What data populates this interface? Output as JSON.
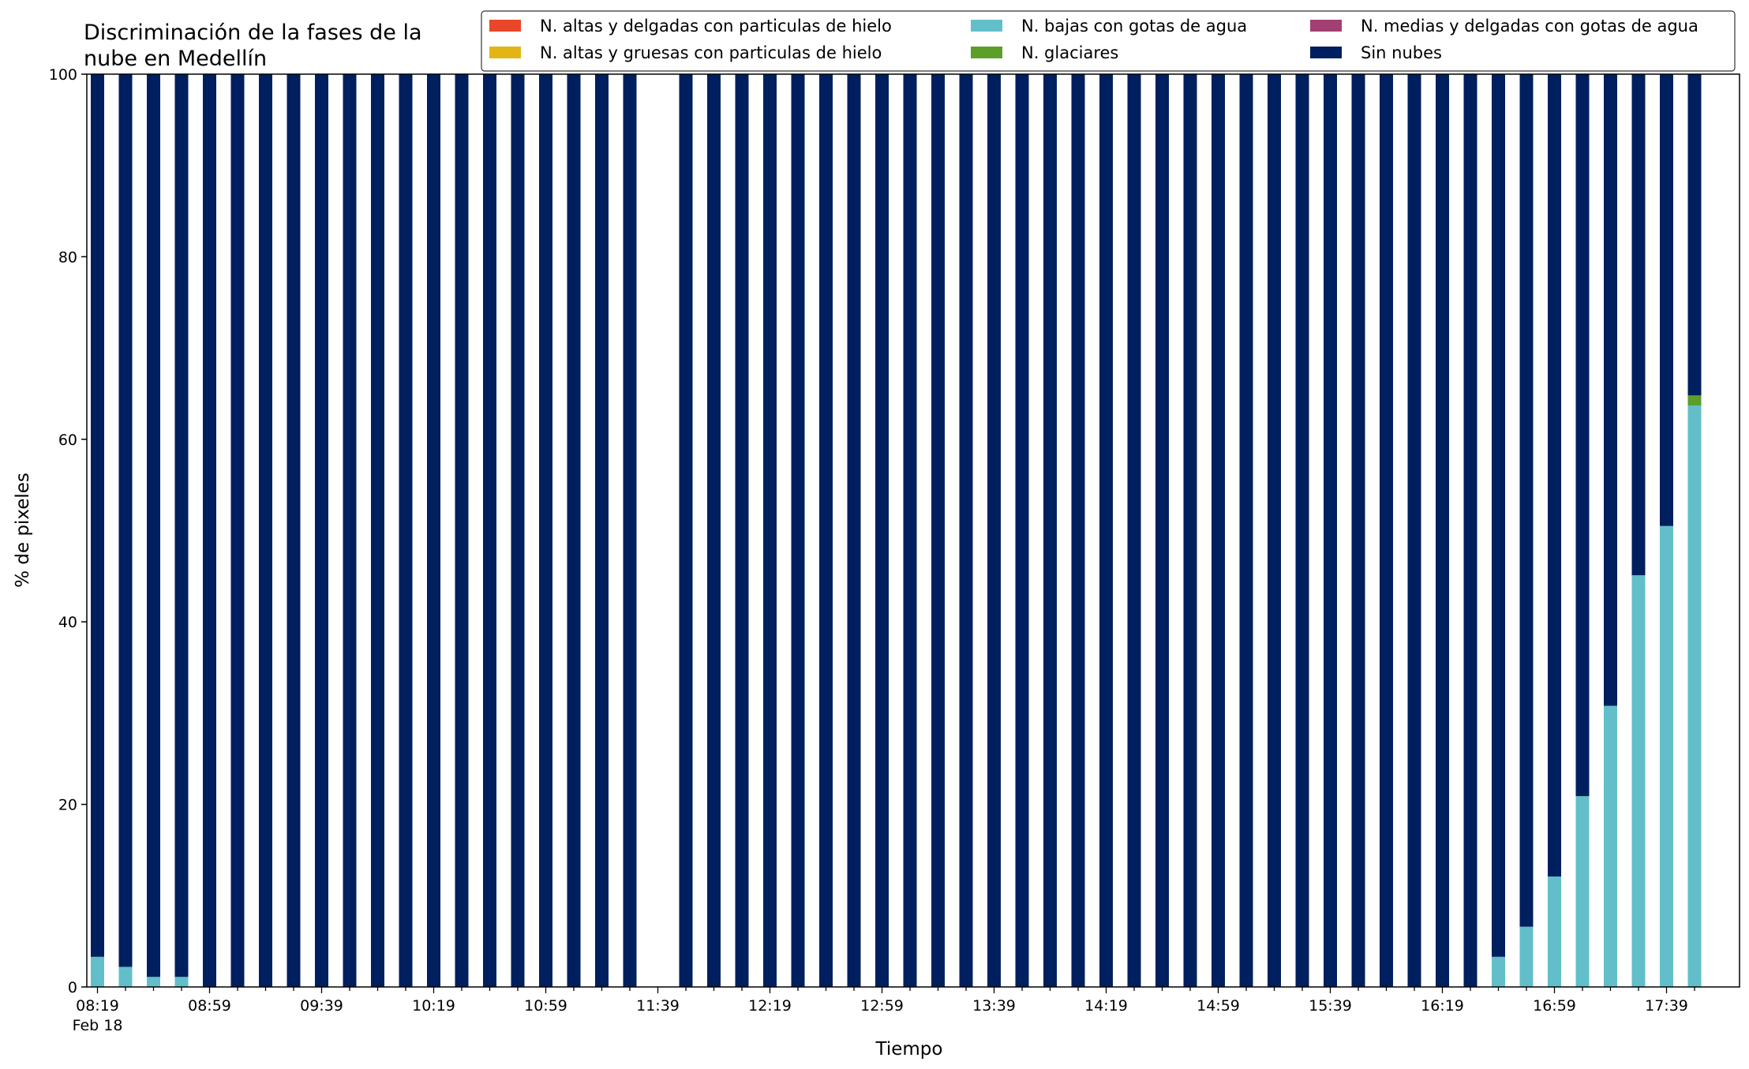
{
  "chart_data": {
    "type": "bar",
    "stacked": true,
    "title": [
      "Discriminación de la fases de la",
      "nube en Medellín"
    ],
    "xlabel": "Tiempo",
    "ylabel": "% de pixeles",
    "ylim": [
      0,
      100
    ],
    "y_ticks": [
      0,
      20,
      40,
      60,
      80,
      100
    ],
    "x_tick_labels": [
      "08:19",
      "08:59",
      "09:39",
      "10:19",
      "10:59",
      "11:39",
      "12:19",
      "12:59",
      "13:39",
      "14:19",
      "14:59",
      "15:39",
      "16:19",
      "16:59",
      "17:39"
    ],
    "x_date_label": "Feb 18",
    "legend_placement": "top-right",
    "grid": false,
    "categories": [
      "08:19",
      "08:29",
      "08:39",
      "08:49",
      "08:59",
      "09:09",
      "09:19",
      "09:29",
      "09:39",
      "09:49",
      "09:59",
      "10:09",
      "10:19",
      "10:29",
      "10:39",
      "10:49",
      "10:59",
      "11:09",
      "11:19",
      "11:29",
      "11:39",
      "11:49",
      "11:59",
      "12:09",
      "12:19",
      "12:29",
      "12:39",
      "12:49",
      "12:59",
      "13:09",
      "13:19",
      "13:29",
      "13:39",
      "13:49",
      "13:59",
      "14:09",
      "14:19",
      "14:29",
      "14:39",
      "14:49",
      "14:59",
      "15:09",
      "15:19",
      "15:29",
      "15:39",
      "15:49",
      "15:59",
      "16:09",
      "16:19",
      "16:29",
      "16:39",
      "16:49",
      "16:59",
      "17:09",
      "17:19",
      "17:29",
      "17:39",
      "17:49"
    ],
    "series": [
      {
        "name": "N. altas y delgadas con particulas de hielo",
        "color": "#e8472a",
        "values": [
          0,
          0,
          0,
          0,
          0,
          0,
          0,
          0,
          0,
          0,
          0,
          0,
          0,
          0,
          0,
          0,
          0,
          0,
          0,
          0,
          null,
          0,
          0,
          0,
          0,
          0,
          0,
          0,
          0,
          0,
          0,
          0,
          0,
          0,
          0,
          0,
          0,
          0,
          0,
          0,
          0,
          0,
          0,
          0,
          0,
          0,
          0,
          0,
          0,
          0,
          0,
          0,
          0,
          0,
          0,
          0,
          0,
          0
        ]
      },
      {
        "name": "N. altas y gruesas con particulas de hielo",
        "color": "#e3b514",
        "values": [
          0,
          0,
          0,
          0,
          0,
          0,
          0,
          0,
          0,
          0,
          0,
          0,
          0,
          0,
          0,
          0,
          0,
          0,
          0,
          0,
          null,
          0,
          0,
          0,
          0,
          0,
          0,
          0,
          0,
          0,
          0,
          0,
          0,
          0,
          0,
          0,
          0,
          0,
          0,
          0,
          0,
          0,
          0,
          0,
          0,
          0,
          0,
          0,
          0,
          0,
          0,
          0,
          0,
          0,
          0,
          0,
          0,
          0
        ]
      },
      {
        "name": "N. bajas con gotas de agua",
        "color": "#62bfca",
        "values": [
          3.3,
          2.2,
          1.1,
          1.1,
          0,
          0,
          0,
          0,
          0,
          0,
          0,
          0,
          0,
          0,
          0,
          0,
          0,
          0,
          0,
          0,
          null,
          0,
          0,
          0,
          0,
          0,
          0,
          0,
          0,
          0,
          0,
          0,
          0,
          0,
          0,
          0,
          0,
          0,
          0,
          0,
          0,
          0,
          0,
          0,
          0,
          0,
          0,
          0,
          0,
          0,
          3.3,
          6.6,
          12.1,
          20.9,
          30.8,
          45.1,
          50.5,
          63.7
        ]
      },
      {
        "name": "N. glaciares",
        "color": "#5b9e2a",
        "values": [
          0,
          0,
          0,
          0,
          0,
          0,
          0,
          0,
          0,
          0,
          0,
          0,
          0,
          0,
          0,
          0,
          0,
          0,
          0,
          0,
          null,
          0,
          0,
          0,
          0,
          0,
          0,
          0,
          0,
          0,
          0,
          0,
          0,
          0,
          0,
          0,
          0,
          0,
          0,
          0,
          0,
          0,
          0,
          0,
          0,
          0,
          0,
          0,
          0,
          0,
          0,
          0,
          0,
          0,
          0,
          0,
          0,
          1.1
        ]
      },
      {
        "name": "N. medias y delgadas con gotas de agua",
        "color": "#a23f73",
        "values": [
          0,
          0,
          0,
          0,
          0,
          0,
          0,
          0,
          0,
          0,
          0,
          0,
          0,
          0,
          0,
          0,
          0,
          0,
          0,
          0,
          null,
          0,
          0,
          0,
          0,
          0,
          0,
          0,
          0,
          0,
          0,
          0,
          0,
          0,
          0,
          0,
          0,
          0,
          0,
          0,
          0,
          0,
          0,
          0,
          0,
          0,
          0,
          0,
          0,
          0,
          0,
          0,
          0,
          0,
          0,
          0,
          0,
          0
        ]
      },
      {
        "name": "Sin nubes",
        "color": "#001f5e",
        "values": [
          96.7,
          97.8,
          98.9,
          98.9,
          100,
          100,
          100,
          100,
          100,
          100,
          100,
          100,
          100,
          100,
          100,
          100,
          100,
          100,
          100,
          100,
          null,
          100,
          100,
          100,
          100,
          100,
          100,
          100,
          100,
          100,
          100,
          100,
          100,
          100,
          100,
          100,
          100,
          100,
          100,
          100,
          100,
          100,
          100,
          100,
          100,
          100,
          100,
          100,
          100,
          100,
          96.7,
          93.4,
          87.9,
          79.1,
          69.2,
          54.9,
          49.5,
          35.2
        ]
      }
    ]
  }
}
